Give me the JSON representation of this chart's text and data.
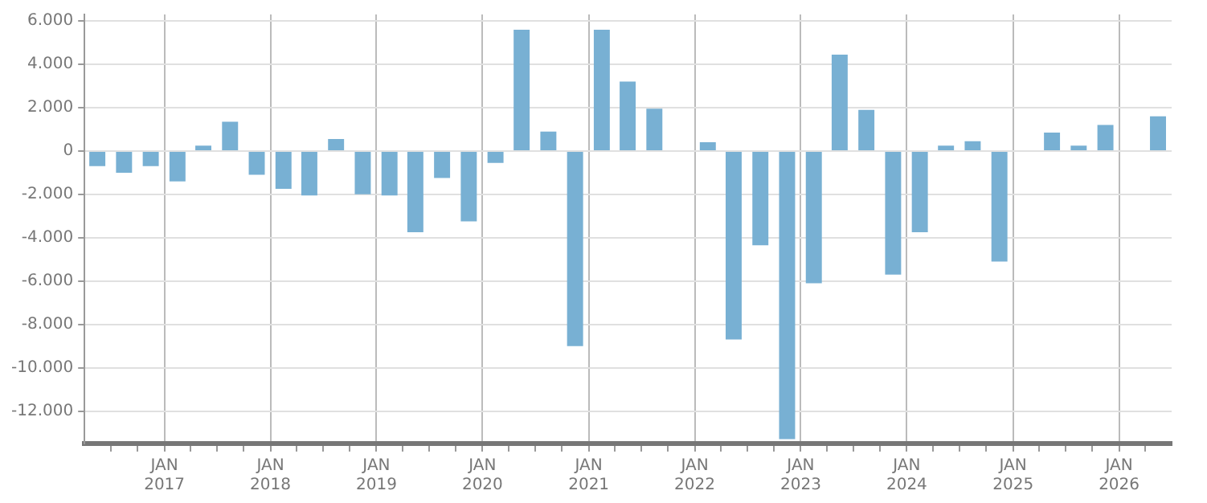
{
  "chart_data": {
    "type": "bar",
    "color": "#78b0d3",
    "grid": true,
    "x": [
      "2016-05-15",
      "2016-08-15",
      "2016-11-15",
      "2017-02-15",
      "2017-05-15",
      "2017-08-15",
      "2017-11-15",
      "2018-02-15",
      "2018-05-15",
      "2018-08-15",
      "2018-11-15",
      "2019-02-15",
      "2019-05-15",
      "2019-08-15",
      "2019-11-15",
      "2020-02-15",
      "2020-05-15",
      "2020-08-15",
      "2020-11-15",
      "2021-02-15",
      "2021-05-15",
      "2021-08-15",
      "2021-11-15",
      "2022-02-15",
      "2022-05-15",
      "2022-08-15",
      "2022-11-15",
      "2023-02-15",
      "2023-05-15",
      "2023-08-15",
      "2023-11-15",
      "2024-02-15",
      "2024-05-15",
      "2024-08-15",
      "2024-11-15",
      "2025-02-15",
      "2025-05-15",
      "2025-08-15",
      "2025-11-15",
      "2026-02-15",
      "2026-05-15"
    ],
    "values": [
      -700,
      -1000,
      -700,
      -1400,
      250,
      1350,
      -1100,
      -1750,
      -2050,
      550,
      -2000,
      -2050,
      -3750,
      -1250,
      -3250,
      -550,
      5600,
      900,
      -9000,
      5600,
      3200,
      1950,
      null,
      400,
      -8700,
      -4350,
      -13300,
      -6100,
      4450,
      1900,
      -5700,
      -3750,
      250,
      450,
      -5100,
      null,
      850,
      250,
      1200,
      null,
      1600
    ],
    "xlim": [
      "2016-04-01",
      "2026-07-01"
    ],
    "xticks": [
      {
        "value": "2016-07-01",
        "label": null
      },
      {
        "value": "2016-10-01",
        "label": null
      },
      {
        "value": "2017-01-01",
        "label": "JAN 2017"
      },
      {
        "value": "2017-04-01",
        "label": null
      },
      {
        "value": "2017-07-01",
        "label": null
      },
      {
        "value": "2017-10-01",
        "label": null
      },
      {
        "value": "2018-01-01",
        "label": "JAN 2018"
      },
      {
        "value": "2018-04-01",
        "label": null
      },
      {
        "value": "2018-07-01",
        "label": null
      },
      {
        "value": "2018-10-01",
        "label": null
      },
      {
        "value": "2019-01-01",
        "label": "JAN 2019"
      },
      {
        "value": "2019-04-01",
        "label": null
      },
      {
        "value": "2019-07-01",
        "label": null
      },
      {
        "value": "2019-10-01",
        "label": null
      },
      {
        "value": "2020-01-01",
        "label": "JAN 2020"
      },
      {
        "value": "2020-04-01",
        "label": null
      },
      {
        "value": "2020-07-01",
        "label": null
      },
      {
        "value": "2020-10-01",
        "label": null
      },
      {
        "value": "2021-01-01",
        "label": "JAN 2021"
      },
      {
        "value": "2021-04-01",
        "label": null
      },
      {
        "value": "2021-07-01",
        "label": null
      },
      {
        "value": "2021-10-01",
        "label": null
      },
      {
        "value": "2022-01-01",
        "label": "JAN 2022"
      },
      {
        "value": "2022-04-01",
        "label": null
      },
      {
        "value": "2022-07-01",
        "label": null
      },
      {
        "value": "2022-10-01",
        "label": null
      },
      {
        "value": "2023-01-01",
        "label": "JAN 2023"
      },
      {
        "value": "2023-04-01",
        "label": null
      },
      {
        "value": "2023-07-01",
        "label": null
      },
      {
        "value": "2023-10-01",
        "label": null
      },
      {
        "value": "2024-01-01",
        "label": "JAN 2024"
      },
      {
        "value": "2024-04-01",
        "label": null
      },
      {
        "value": "2024-07-01",
        "label": null
      },
      {
        "value": "2024-10-01",
        "label": null
      },
      {
        "value": "2025-01-01",
        "label": "JAN 2025"
      },
      {
        "value": "2025-04-01",
        "label": null
      },
      {
        "value": "2025-07-01",
        "label": null
      },
      {
        "value": "2025-10-01",
        "label": null
      },
      {
        "value": "2026-01-01",
        "label": "JAN 2026"
      },
      {
        "value": "2026-04-01",
        "label": null
      }
    ],
    "ylim": [
      -13500,
      6300
    ],
    "yticks": [
      {
        "value": -12000,
        "label": "-12.000"
      },
      {
        "value": -10000,
        "label": "-10.000"
      },
      {
        "value": -8000,
        "label": "-8.000"
      },
      {
        "value": -6000,
        "label": "-6.000"
      },
      {
        "value": -4000,
        "label": "-4.000"
      },
      {
        "value": -2000,
        "label": "-2.000"
      },
      0,
      {
        "value": 2000,
        "label": "2.000"
      },
      {
        "value": 4000,
        "label": "4.000"
      },
      {
        "value": 6000,
        "label": "6.000"
      }
    ]
  }
}
